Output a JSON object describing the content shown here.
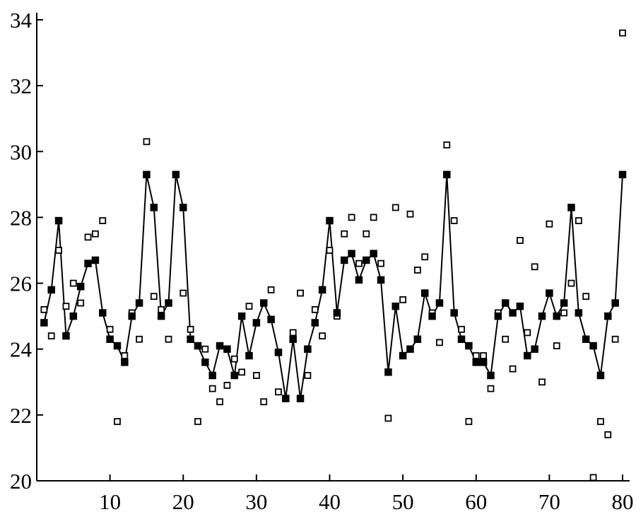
{
  "chart_data": {
    "type": "scatter",
    "title": "",
    "xlabel": "",
    "ylabel": "",
    "xlim": [
      0,
      80
    ],
    "ylim": [
      20,
      34
    ],
    "x_ticks": [
      10,
      20,
      30,
      40,
      50,
      60,
      70,
      80
    ],
    "y_ticks": [
      20,
      22,
      24,
      26,
      28,
      30,
      32,
      34
    ],
    "grid": false,
    "series": [
      {
        "style": "filled-square-line",
        "x": [
          1,
          2,
          3,
          4,
          5,
          6,
          7,
          8,
          9,
          10,
          11,
          12,
          13,
          14,
          15,
          16,
          17,
          18,
          19,
          20,
          21,
          22,
          23,
          24,
          25,
          26,
          27,
          28,
          29,
          30,
          31,
          32,
          33,
          34,
          35,
          36,
          37,
          38,
          39,
          40,
          41,
          42,
          43,
          44,
          45,
          46,
          47,
          48,
          49,
          50,
          51,
          52,
          53,
          54,
          55,
          56,
          57,
          58,
          59,
          60,
          61,
          62,
          63,
          64,
          65,
          66,
          67,
          68,
          69,
          70,
          71,
          72,
          73,
          74,
          75,
          76,
          77,
          78,
          79,
          80
        ],
        "values": [
          24.8,
          25.8,
          27.9,
          24.4,
          25.0,
          25.9,
          26.6,
          26.7,
          25.1,
          24.3,
          24.1,
          23.6,
          25.0,
          25.4,
          29.3,
          28.3,
          25.0,
          25.4,
          29.3,
          28.3,
          24.3,
          24.1,
          23.6,
          23.2,
          24.1,
          24.0,
          23.2,
          25.0,
          23.8,
          24.8,
          25.4,
          24.9,
          23.9,
          22.5,
          24.3,
          22.5,
          24.0,
          24.8,
          25.8,
          27.9,
          25.1,
          26.7,
          26.9,
          26.1,
          26.7,
          26.9,
          26.1,
          23.3,
          25.3,
          23.8,
          24.0,
          24.3,
          25.7,
          25.0,
          25.4,
          29.3,
          25.1,
          24.3,
          24.1,
          23.6,
          23.6,
          23.2,
          25.0,
          25.4,
          25.1,
          25.3,
          23.8,
          24.0,
          25.0,
          25.7,
          25.0,
          25.4,
          28.3,
          25.1,
          24.3,
          24.1,
          23.2,
          25.0,
          25.4,
          29.3
        ]
      },
      {
        "style": "open-square",
        "x": [
          1,
          2,
          3,
          4,
          5,
          6,
          7,
          8,
          9,
          10,
          11,
          12,
          13,
          14,
          15,
          16,
          17,
          18,
          19,
          20,
          21,
          22,
          23,
          24,
          25,
          26,
          27,
          28,
          29,
          30,
          31,
          32,
          33,
          34,
          35,
          36,
          37,
          38,
          39,
          40,
          41,
          42,
          43,
          44,
          45,
          46,
          47,
          48,
          49,
          50,
          51,
          52,
          53,
          54,
          55,
          56,
          57,
          58,
          59,
          60,
          61,
          62,
          63,
          64,
          65,
          66,
          67,
          68,
          69,
          70,
          71,
          72,
          73,
          74,
          75,
          76,
          77,
          78,
          79,
          80
        ],
        "values": [
          25.2,
          24.4,
          27.0,
          25.3,
          26.0,
          25.4,
          27.4,
          27.5,
          27.9,
          24.6,
          21.8,
          23.8,
          25.1,
          24.3,
          30.3,
          25.6,
          25.2,
          24.3,
          29.3,
          25.7,
          24.6,
          21.8,
          24.0,
          22.8,
          22.4,
          22.9,
          23.7,
          23.3,
          25.3,
          23.2,
          22.4,
          25.8,
          22.7,
          22.5,
          24.5,
          25.7,
          23.2,
          25.2,
          24.4,
          27.0,
          25.0,
          27.5,
          28.0,
          26.6,
          27.5,
          28.0,
          26.6,
          21.9,
          28.3,
          25.5,
          28.1,
          26.4,
          26.8,
          25.1,
          24.2,
          30.2,
          27.9,
          24.6,
          21.8,
          23.8,
          23.8,
          22.8,
          25.1,
          24.3,
          23.4,
          27.3,
          24.5,
          26.5,
          23.0,
          27.8,
          24.1,
          25.1,
          26.0,
          27.9,
          25.6,
          20.1,
          21.8,
          21.4,
          24.3,
          33.6
        ]
      }
    ]
  }
}
